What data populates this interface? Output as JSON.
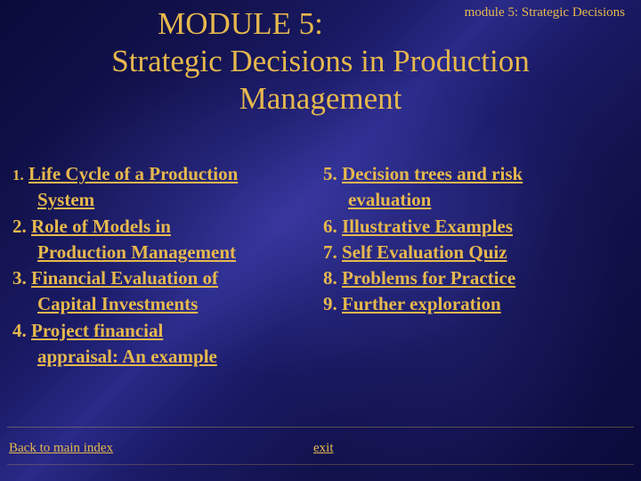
{
  "colors": {
    "text": "#e6b84d",
    "bg_base": "#0b0b40",
    "gradient_stops": [
      "#0a0a3a",
      "#12124d",
      "#1a1a66",
      "#2a2a88",
      "#1a1a66",
      "#12124d",
      "#0a0a3a"
    ],
    "divider": "rgba(230,184,77,0.35)"
  },
  "typography": {
    "title_fontsize": 35,
    "body_fontsize": 21,
    "header_label_fontsize": 15,
    "footer_fontsize": 15,
    "font_family": "Times New Roman"
  },
  "header": {
    "label": "module 5: Strategic Decisions"
  },
  "title": {
    "line1": "MODULE 5:",
    "line2": "Strategic Decisions in Production",
    "line3": "Management"
  },
  "left_items": [
    {
      "num": "1.",
      "text_a": "Life Cycle of a Production",
      "text_b": "System",
      "small_num": true
    },
    {
      "num": "2.",
      "text_a": "Role of Models in",
      "text_b": "Production Management"
    },
    {
      "num": "3.",
      "text_a": "Financial Evaluation of",
      "text_b": "Capital Investments"
    },
    {
      "num": "4.",
      "text_a": "Project financial",
      "text_b": "appraisal: An example"
    }
  ],
  "right_items": [
    {
      "num": "5.",
      "text_a": "Decision trees and risk",
      "text_b": "evaluation"
    },
    {
      "num": "6.",
      "text_a": "Illustrative Examples"
    },
    {
      "num": "7.",
      "text_a": "Self Evaluation Quiz"
    },
    {
      "num": "8.",
      "text_a": "Problems for Practice"
    },
    {
      "num": "9.",
      "text_a": "Further exploration"
    }
  ],
  "footer": {
    "back": "Back to main index",
    "exit": "exit"
  }
}
